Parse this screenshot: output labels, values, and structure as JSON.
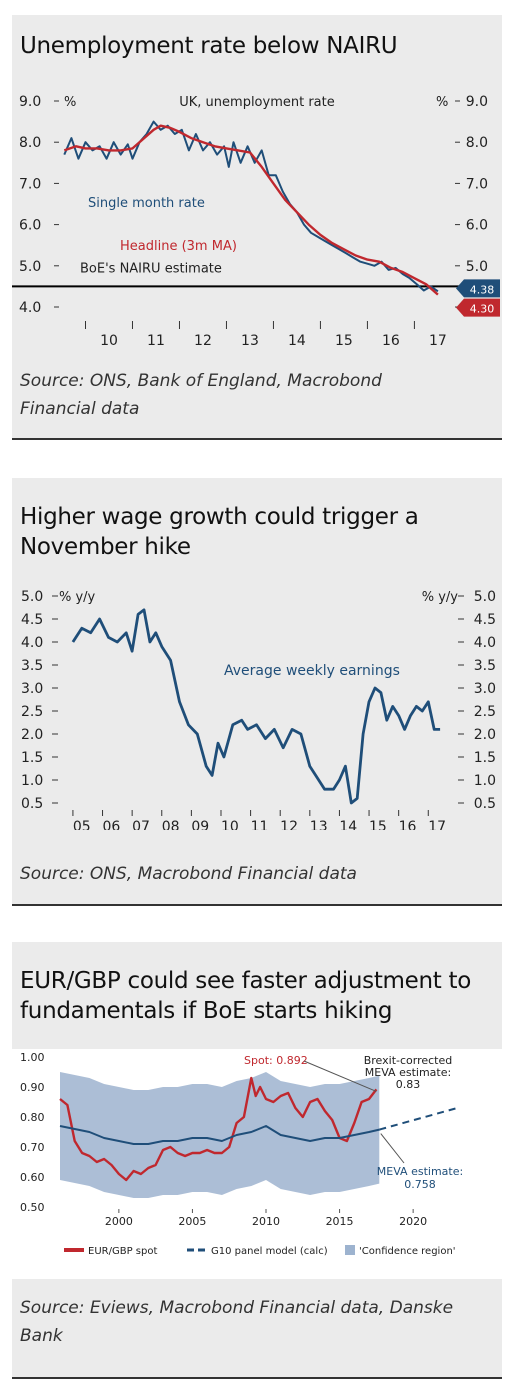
{
  "chart1": {
    "title": "Unemployment rate below NAIRU",
    "source": "Source: ONS, Bank of England, Macrobond Financial data",
    "chart_data": {
      "type": "line",
      "title": "UK, unemployment rate",
      "ylim": [
        4.0,
        9.0
      ],
      "y_ticks": [
        "4.0",
        "5.0",
        "6.0",
        "7.0",
        "8.0",
        "9.0"
      ],
      "unit_left": "%",
      "unit_right": "%",
      "x_ticks": [
        "10",
        "11",
        "12",
        "13",
        "14",
        "15",
        "16",
        "17"
      ],
      "xlim": [
        2009.5,
        2017.8
      ],
      "series": [
        {
          "name": "Single month rate",
          "color": "#1f4e79",
          "x": [
            2009.55,
            2009.7,
            2009.85,
            2010.0,
            2010.15,
            2010.3,
            2010.45,
            2010.6,
            2010.75,
            2010.9,
            2011.0,
            2011.15,
            2011.3,
            2011.45,
            2011.6,
            2011.75,
            2011.9,
            2012.05,
            2012.2,
            2012.35,
            2012.5,
            2012.65,
            2012.8,
            2012.95,
            2013.05,
            2013.15,
            2013.3,
            2013.45,
            2013.6,
            2013.75,
            2013.9,
            2014.05,
            2014.2,
            2014.35,
            2014.5,
            2014.65,
            2014.8,
            2014.95,
            2015.1,
            2015.25,
            2015.4,
            2015.55,
            2015.7,
            2015.85,
            2016.0,
            2016.15,
            2016.3,
            2016.45,
            2016.6,
            2016.75,
            2016.9,
            2017.05,
            2017.2,
            2017.35,
            2017.5
          ],
          "y": [
            7.7,
            8.1,
            7.6,
            8.0,
            7.8,
            7.9,
            7.6,
            8.0,
            7.7,
            7.95,
            7.6,
            8.0,
            8.2,
            8.5,
            8.3,
            8.4,
            8.2,
            8.3,
            7.8,
            8.2,
            7.8,
            8.0,
            7.7,
            7.9,
            7.4,
            8.0,
            7.5,
            7.9,
            7.5,
            7.8,
            7.2,
            7.2,
            6.8,
            6.5,
            6.3,
            6.0,
            5.8,
            5.7,
            5.6,
            5.5,
            5.4,
            5.3,
            5.2,
            5.1,
            5.05,
            5.0,
            5.1,
            4.9,
            4.95,
            4.8,
            4.7,
            4.55,
            4.4,
            4.5,
            4.38
          ]
        },
        {
          "name": "Headline (3m MA)",
          "color": "#c0282e",
          "x": [
            2009.55,
            2009.8,
            2010.0,
            2010.25,
            2010.5,
            2010.75,
            2011.0,
            2011.25,
            2011.45,
            2011.6,
            2011.8,
            2012.0,
            2012.25,
            2012.5,
            2012.75,
            2013.0,
            2013.25,
            2013.5,
            2013.75,
            2014.0,
            2014.25,
            2014.5,
            2014.75,
            2015.0,
            2015.25,
            2015.5,
            2015.75,
            2016.0,
            2016.25,
            2016.5,
            2016.75,
            2017.0,
            2017.25,
            2017.5
          ],
          "y": [
            7.8,
            7.9,
            7.85,
            7.85,
            7.8,
            7.8,
            7.85,
            8.1,
            8.3,
            8.4,
            8.35,
            8.25,
            8.1,
            8.0,
            7.9,
            7.85,
            7.8,
            7.75,
            7.4,
            7.0,
            6.6,
            6.3,
            6.0,
            5.75,
            5.55,
            5.4,
            5.25,
            5.15,
            5.1,
            4.95,
            4.85,
            4.7,
            4.55,
            4.3
          ]
        }
      ],
      "series_labels": [
        "Single month rate",
        "Headline (3m MA)"
      ],
      "reference_line": {
        "label": "BoE's NAIRU estimate",
        "value": 4.5
      },
      "end_labels": [
        "4.38",
        "4.30"
      ],
      "grid": false
    }
  },
  "chart2": {
    "title": "Higher wage growth could trigger a November hike",
    "source": "Source: ONS, Macrobond Financial data",
    "chart_data": {
      "type": "line",
      "ylim": [
        0.5,
        5.0
      ],
      "y_ticks": [
        "0.5",
        "1.0",
        "1.5",
        "2.0",
        "2.5",
        "3.0",
        "3.5",
        "4.0",
        "4.5",
        "5.0"
      ],
      "unit_left": "% y/y",
      "unit_right": "% y/y",
      "x_ticks": [
        "05",
        "06",
        "07",
        "08",
        "09",
        "10",
        "11",
        "12",
        "13",
        "14",
        "15",
        "16",
        "17"
      ],
      "xlim": [
        2004.8,
        2017.7
      ],
      "series": [
        {
          "name": "Average weekly earnings",
          "color": "#1f4e79",
          "x": [
            2005.0,
            2005.3,
            2005.6,
            2005.9,
            2006.2,
            2006.5,
            2006.8,
            2007.0,
            2007.2,
            2007.4,
            2007.6,
            2007.8,
            2008.0,
            2008.3,
            2008.6,
            2008.9,
            2009.2,
            2009.5,
            2009.7,
            2009.9,
            2010.1,
            2010.4,
            2010.7,
            2010.9,
            2011.2,
            2011.5,
            2011.8,
            2012.1,
            2012.4,
            2012.7,
            2013.0,
            2013.2,
            2013.5,
            2013.8,
            2014.0,
            2014.2,
            2014.4,
            2014.6,
            2014.8,
            2015.0,
            2015.2,
            2015.4,
            2015.6,
            2015.8,
            2016.0,
            2016.2,
            2016.4,
            2016.6,
            2016.8,
            2017.0,
            2017.2,
            2017.4
          ],
          "y": [
            4.0,
            4.3,
            4.2,
            4.5,
            4.1,
            4.0,
            4.2,
            3.8,
            4.6,
            4.7,
            4.0,
            4.2,
            3.9,
            3.6,
            2.7,
            2.2,
            2.0,
            1.3,
            1.1,
            1.8,
            1.5,
            2.2,
            2.3,
            2.1,
            2.2,
            1.9,
            2.1,
            1.7,
            2.1,
            2.0,
            1.3,
            1.1,
            0.8,
            0.8,
            1.0,
            1.3,
            0.5,
            0.6,
            2.0,
            2.7,
            3.0,
            2.9,
            2.3,
            2.6,
            2.4,
            2.1,
            2.4,
            2.6,
            2.5,
            2.7,
            2.1,
            2.1
          ]
        }
      ],
      "series_labels": [
        "Average weekly earnings"
      ],
      "grid": false
    }
  },
  "chart3": {
    "title": "EUR/GBP could see faster adjustment to fundamentals if BoE starts hiking",
    "source": "Source: Eviews, Macrobond Financial data, Danske Bank",
    "chart_data": {
      "type": "line",
      "ylim": [
        0.5,
        1.0
      ],
      "y_ticks": [
        "0.50",
        "0.60",
        "0.70",
        "0.80",
        "0.90",
        "1.00"
      ],
      "x_ticks": [
        "2000",
        "2005",
        "2010",
        "2015",
        "2020"
      ],
      "xlim": [
        1996,
        2024
      ],
      "series": [
        {
          "name": "EUR/GBP spot",
          "color": "#c0282e",
          "x": [
            1996.0,
            1996.5,
            1997.0,
            1997.5,
            1998.0,
            1998.5,
            1999.0,
            1999.5,
            2000.0,
            2000.5,
            2001.0,
            2001.5,
            2002.0,
            2002.5,
            2003.0,
            2003.5,
            2004.0,
            2004.5,
            2005.0,
            2005.5,
            2006.0,
            2006.5,
            2007.0,
            2007.5,
            2008.0,
            2008.5,
            2009.0,
            2009.3,
            2009.6,
            2010.0,
            2010.5,
            2011.0,
            2011.5,
            2012.0,
            2012.5,
            2013.0,
            2013.5,
            2014.0,
            2014.5,
            2015.0,
            2015.5,
            2016.0,
            2016.5,
            2017.0,
            2017.5
          ],
          "y": [
            0.86,
            0.84,
            0.72,
            0.68,
            0.67,
            0.65,
            0.66,
            0.64,
            0.61,
            0.59,
            0.62,
            0.61,
            0.63,
            0.64,
            0.69,
            0.7,
            0.68,
            0.67,
            0.68,
            0.68,
            0.69,
            0.68,
            0.68,
            0.7,
            0.78,
            0.8,
            0.93,
            0.87,
            0.9,
            0.86,
            0.85,
            0.87,
            0.88,
            0.83,
            0.8,
            0.85,
            0.86,
            0.82,
            0.79,
            0.73,
            0.72,
            0.78,
            0.85,
            0.86,
            0.892
          ]
        },
        {
          "name": "G10 panel model (calc)",
          "color": "#1f4e79",
          "x": [
            1996.0,
            1997.0,
            1998.0,
            1999.0,
            2000.0,
            2001.0,
            2002.0,
            2003.0,
            2004.0,
            2005.0,
            2006.0,
            2007.0,
            2008.0,
            2009.0,
            2010.0,
            2011.0,
            2012.0,
            2013.0,
            2014.0,
            2015.0,
            2016.0,
            2017.0,
            2017.7
          ],
          "y": [
            0.77,
            0.76,
            0.75,
            0.73,
            0.72,
            0.71,
            0.71,
            0.72,
            0.72,
            0.73,
            0.73,
            0.72,
            0.74,
            0.75,
            0.77,
            0.74,
            0.73,
            0.72,
            0.73,
            0.73,
            0.74,
            0.75,
            0.758
          ]
        },
        {
          "name": "G10 panel model (calc) projection",
          "color": "#1f4e79",
          "dashed": true,
          "x": [
            2017.7,
            2023.0
          ],
          "y": [
            0.758,
            0.83
          ]
        }
      ],
      "band": {
        "name": "'Confidence region'",
        "color": "#9db3cf",
        "offset": 0.18,
        "x_end": 2017.7
      },
      "annotations": {
        "spot": "Spot: 0.892",
        "brexit": [
          "Brexit-corrected",
          "MEVA estimate:",
          "0.83"
        ],
        "meva": [
          "MEVA estimate:",
          "0.758"
        ]
      },
      "legend": [
        "EUR/GBP spot",
        "G10 panel model (calc)",
        "'Confidence region'"
      ],
      "legend_position": "bottom",
      "grid": false
    }
  }
}
